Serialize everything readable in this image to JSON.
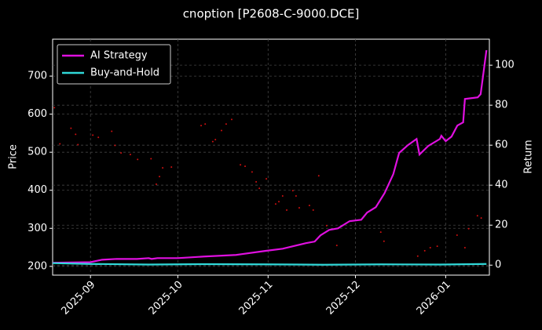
{
  "chart_data": {
    "type": "line",
    "title": "cnoption [P2608-C-9000.DCE]",
    "ylabel": "Price",
    "y2label": "Return",
    "xlim": [
      -13,
      137
    ],
    "xticks": [
      {
        "value": 0,
        "label": "2025-09"
      },
      {
        "value": 30,
        "label": "2025-10"
      },
      {
        "value": 61,
        "label": "2025-11"
      },
      {
        "value": 91,
        "label": "2025-12"
      },
      {
        "value": 122,
        "label": "2026-01"
      }
    ],
    "ylim": [
      177,
      797
    ],
    "yticks": [
      200,
      300,
      400,
      500,
      600,
      700
    ],
    "y2lim": [
      -5,
      113
    ],
    "y2ticks": [
      0,
      20,
      40,
      60,
      80,
      100
    ],
    "grid": true,
    "legend": "upper left",
    "series": [
      {
        "name": "AI Strategy",
        "color": "#e010e0",
        "axis": "y2",
        "x": [
          -13,
          0,
          4,
          9,
          16,
          20,
          21,
          23,
          30,
          39,
          50,
          52,
          60,
          66,
          74,
          77,
          79,
          82,
          85,
          89,
          93,
          95,
          98,
          101,
          104,
          106,
          109,
          112,
          113,
          116,
          120,
          120.5,
          122,
          124,
          126,
          128,
          128.6,
          133,
          134,
          136
        ],
        "values": [
          1.2,
          1.5,
          2.7,
          3.1,
          3.1,
          3.5,
          3.1,
          3.5,
          3.5,
          4.3,
          5.1,
          5.5,
          7.1,
          8.2,
          11,
          11.8,
          14.9,
          17.6,
          18.4,
          22,
          22.7,
          26.3,
          29,
          36,
          45.5,
          56.1,
          60,
          63.1,
          55.3,
          59.6,
          63.1,
          64.7,
          62,
          64.3,
          69.8,
          71.4,
          83.1,
          83.9,
          85.5,
          107.5
        ]
      },
      {
        "name": "Buy-and-Hold",
        "color": "#30d8d8",
        "axis": "y2",
        "x": [
          -13,
          0,
          20,
          40,
          60,
          80,
          100,
          120,
          136
        ],
        "values": [
          1.0,
          0.6,
          0.3,
          0.5,
          0.4,
          0.2,
          0.4,
          0.3,
          0.6
        ]
      },
      {
        "type": "scatter",
        "color": "#d01010",
        "axis": "y",
        "x": [
          -12.4,
          -10.5,
          -6.7,
          -5.1,
          -4.3,
          0.8,
          2.7,
          7.3,
          8.4,
          10.5,
          13.7,
          16.2,
          20.8,
          22.6,
          23.7,
          24.8,
          27.8,
          38,
          39.4,
          42,
          42.9,
          45,
          46.6,
          48.5,
          51.5,
          53.1,
          55.5,
          56.9,
          58,
          60.4,
          63.6,
          64.7,
          66,
          67.4,
          69.5,
          70.6,
          71.7,
          75.2,
          76.5,
          78.4,
          81.1,
          84.6,
          99.7,
          100.8,
          112.4,
          114.8,
          116.7,
          119.1,
          125.9,
          128.6,
          129.9,
          132.9,
          134.2
        ],
        "values": [
          617,
          522,
          563,
          547,
          520,
          545,
          539,
          555,
          518,
          498,
          494,
          481,
          483,
          416,
          436,
          459,
          461,
          570,
          574,
          528,
          533,
          557,
          574,
          586,
          467,
          463,
          448,
          422,
          405,
          430,
          364,
          370,
          385,
          348,
          399,
          385,
          354,
          360,
          348,
          438,
          307,
          255,
          290,
          266,
          227,
          241,
          249,
          253,
          282,
          249,
          299,
          333,
          327
        ]
      }
    ]
  }
}
